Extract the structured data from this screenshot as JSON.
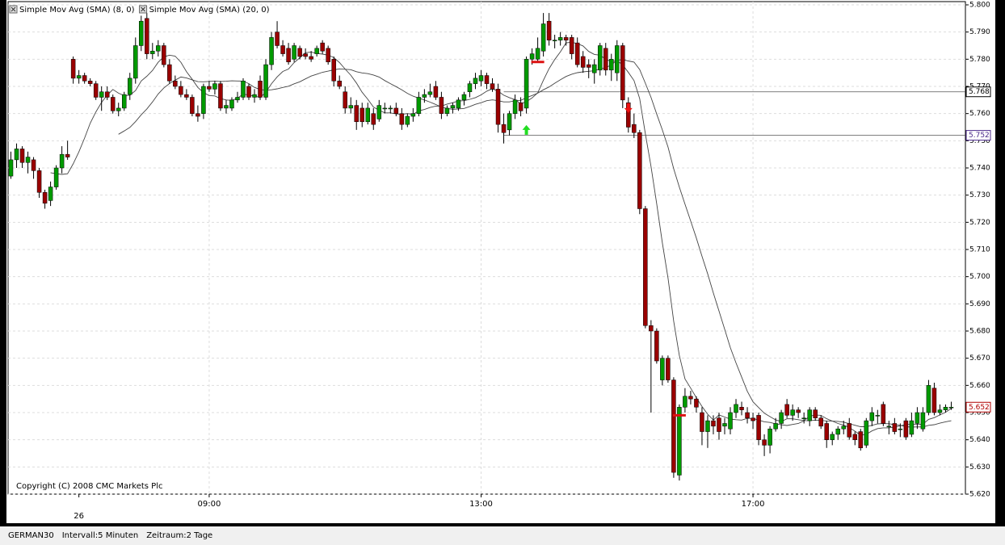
{
  "chart_data": {
    "type": "candlestick",
    "sma": [
      {
        "name": "Simple Mov Avg (SMA) (8, 0)",
        "period": 8,
        "color": "#444444"
      },
      {
        "name": "Simple Mov Avg (SMA) (20, 0)",
        "period": 20,
        "color": "#444444"
      }
    ],
    "copyright": "Copyright (C) 2008 CMC Markets Plc",
    "up_color": "#009a00",
    "down_color": "#9a0000",
    "xlim": [
      -0.5,
      168.5
    ],
    "xticks": [
      {
        "value": 12,
        "label": "26"
      },
      {
        "value": 35,
        "label": "09:00"
      },
      {
        "value": 83,
        "label": "13:00"
      },
      {
        "value": 131,
        "label": "17:00"
      }
    ],
    "ylim": [
      5620,
      5800
    ],
    "yticks": [
      {
        "value": 5620,
        "label": "5.620"
      },
      {
        "value": 5630,
        "label": "5.630"
      },
      {
        "value": 5640,
        "label": "5.640"
      },
      {
        "value": 5650,
        "label": "5.650"
      },
      {
        "value": 5660,
        "label": "5.660"
      },
      {
        "value": 5670,
        "label": "5.670"
      },
      {
        "value": 5680,
        "label": "5.680"
      },
      {
        "value": 5690,
        "label": "5.690"
      },
      {
        "value": 5700,
        "label": "5.700"
      },
      {
        "value": 5710,
        "label": "5.710"
      },
      {
        "value": 5720,
        "label": "5.720"
      },
      {
        "value": 5730,
        "label": "5.730"
      },
      {
        "value": 5740,
        "label": "5.740"
      },
      {
        "value": 5750,
        "label": "5.750"
      },
      {
        "value": 5760,
        "label": "5.760"
      },
      {
        "value": 5770,
        "label": "5.770"
      },
      {
        "value": 5780,
        "label": "5.780"
      },
      {
        "value": 5790,
        "label": "5.790"
      },
      {
        "value": 5800,
        "label": "5.800"
      }
    ],
    "grid": true,
    "levels": [
      {
        "value": 5768,
        "label": "5.768",
        "color": "#000000"
      },
      {
        "value": 5752,
        "label": "5.752",
        "color": "#4b2a8a"
      }
    ],
    "last": {
      "value": 5652,
      "label": "5.652",
      "color": "#b00000"
    },
    "signals": [
      {
        "kind": "buy",
        "x": 91,
        "price": 5754
      },
      {
        "kind": "exit",
        "x": 93,
        "price": 5779
      },
      {
        "kind": "sell",
        "x": 109,
        "price": 5762
      },
      {
        "kind": "exit",
        "x": 118,
        "price": 5649
      }
    ],
    "ohlc": [
      [
        5737,
        5746,
        5736,
        5743
      ],
      [
        5743,
        5749,
        5740,
        5747
      ],
      [
        5747,
        5748,
        5740,
        5742
      ],
      [
        5742,
        5746,
        5738,
        5744
      ],
      [
        5743,
        5744,
        5736,
        5739
      ],
      [
        5739,
        5740,
        5729,
        5731
      ],
      [
        5731,
        5732,
        5725,
        5727
      ],
      [
        5728,
        5735,
        5726,
        5733
      ],
      [
        5733,
        5741,
        5732,
        5740
      ],
      [
        5740,
        5748,
        5738,
        5745
      ],
      [
        5745,
        5750,
        5743,
        5744
      ],
      [
        5780,
        5781,
        5771,
        5773
      ],
      [
        5773,
        5776,
        5771,
        5774
      ],
      [
        5774,
        5775,
        5771,
        5772
      ],
      [
        5772,
        5773,
        5770,
        5771
      ],
      [
        5771,
        5772,
        5765,
        5766
      ],
      [
        5766,
        5770,
        5761,
        5768
      ],
      [
        5768,
        5770,
        5765,
        5766
      ],
      [
        5766,
        5767,
        5760,
        5761
      ],
      [
        5761,
        5764,
        5759,
        5762
      ],
      [
        5762,
        5768,
        5761,
        5767
      ],
      [
        5767,
        5775,
        5765,
        5773
      ],
      [
        5773,
        5788,
        5771,
        5785
      ],
      [
        5785,
        5796,
        5783,
        5794
      ],
      [
        5795,
        5797,
        5780,
        5782
      ],
      [
        5782,
        5786,
        5780,
        5783
      ],
      [
        5783,
        5787,
        5781,
        5785
      ],
      [
        5785,
        5786,
        5777,
        5778
      ],
      [
        5778,
        5780,
        5771,
        5772
      ],
      [
        5772,
        5774,
        5769,
        5770
      ],
      [
        5770,
        5772,
        5766,
        5767
      ],
      [
        5767,
        5769,
        5765,
        5766
      ],
      [
        5766,
        5767,
        5759,
        5760
      ],
      [
        5760,
        5763,
        5757,
        5759
      ],
      [
        5760,
        5771,
        5758,
        5770
      ],
      [
        5770,
        5772,
        5768,
        5769
      ],
      [
        5769,
        5772,
        5767,
        5771
      ],
      [
        5771,
        5772,
        5761,
        5762
      ],
      [
        5762,
        5765,
        5760,
        5763
      ],
      [
        5762,
        5766,
        5761,
        5765
      ],
      [
        5765,
        5768,
        5764,
        5766
      ],
      [
        5766,
        5773,
        5765,
        5772
      ],
      [
        5770,
        5771,
        5765,
        5766
      ],
      [
        5766,
        5769,
        5764,
        5767
      ],
      [
        5772,
        5774,
        5765,
        5766
      ],
      [
        5766,
        5780,
        5765,
        5778
      ],
      [
        5778,
        5790,
        5776,
        5788
      ],
      [
        5790,
        5794,
        5784,
        5785
      ],
      [
        5785,
        5787,
        5781,
        5782
      ],
      [
        5784,
        5786,
        5778,
        5779
      ],
      [
        5780,
        5786,
        5779,
        5785
      ],
      [
        5784,
        5785,
        5780,
        5781
      ],
      [
        5782,
        5784,
        5780,
        5781
      ],
      [
        5781,
        5783,
        5779,
        5780
      ],
      [
        5782,
        5785,
        5781,
        5784
      ],
      [
        5786,
        5787,
        5782,
        5783
      ],
      [
        5784,
        5785,
        5778,
        5779
      ],
      [
        5780,
        5781,
        5770,
        5772
      ],
      [
        5772,
        5774,
        5769,
        5770
      ],
      [
        5768,
        5770,
        5760,
        5762
      ],
      [
        5762,
        5766,
        5760,
        5763
      ],
      [
        5763,
        5765,
        5754,
        5757
      ],
      [
        5762,
        5764,
        5755,
        5757
      ],
      [
        5757,
        5764,
        5756,
        5762
      ],
      [
        5760,
        5762,
        5754,
        5756
      ],
      [
        5758,
        5765,
        5757,
        5763
      ],
      [
        5762,
        5764,
        5760,
        5762
      ],
      [
        5762,
        5763,
        5760,
        5762
      ],
      [
        5762,
        5764,
        5759,
        5760
      ],
      [
        5760,
        5762,
        5754,
        5756
      ],
      [
        5756,
        5760,
        5755,
        5759
      ],
      [
        5759,
        5762,
        5757,
        5760
      ],
      [
        5760,
        5768,
        5759,
        5766
      ],
      [
        5766,
        5769,
        5764,
        5767
      ],
      [
        5767,
        5771,
        5766,
        5768
      ],
      [
        5770,
        5772,
        5765,
        5766
      ],
      [
        5766,
        5768,
        5758,
        5760
      ],
      [
        5760,
        5763,
        5759,
        5762
      ],
      [
        5762,
        5764,
        5760,
        5763
      ],
      [
        5762,
        5766,
        5761,
        5765
      ],
      [
        5765,
        5768,
        5763,
        5767
      ],
      [
        5768,
        5772,
        5766,
        5771
      ],
      [
        5771,
        5775,
        5769,
        5773
      ],
      [
        5772,
        5776,
        5770,
        5774
      ],
      [
        5774,
        5775,
        5769,
        5771
      ],
      [
        5771,
        5773,
        5768,
        5769
      ],
      [
        5769,
        5771,
        5753,
        5756
      ],
      [
        5756,
        5760,
        5749,
        5753
      ],
      [
        5754,
        5761,
        5752,
        5760
      ],
      [
        5760,
        5767,
        5758,
        5765
      ],
      [
        5764,
        5766,
        5759,
        5761
      ],
      [
        5762,
        5781,
        5760,
        5780
      ],
      [
        5780,
        5784,
        5778,
        5782
      ],
      [
        5780,
        5788,
        5779,
        5784
      ],
      [
        5783,
        5797,
        5781,
        5793
      ],
      [
        5794,
        5797,
        5785,
        5787
      ],
      [
        5787,
        5789,
        5784,
        5787
      ],
      [
        5787,
        5790,
        5785,
        5788
      ],
      [
        5788,
        5789,
        5785,
        5787
      ],
      [
        5788,
        5789,
        5780,
        5782
      ],
      [
        5786,
        5788,
        5777,
        5778
      ],
      [
        5781,
        5783,
        5775,
        5777
      ],
      [
        5778,
        5780,
        5773,
        5777
      ],
      [
        5775,
        5780,
        5771,
        5778
      ],
      [
        5776,
        5786,
        5774,
        5785
      ],
      [
        5784,
        5786,
        5774,
        5776
      ],
      [
        5776,
        5782,
        5772,
        5780
      ],
      [
        5775,
        5787,
        5772,
        5785
      ],
      [
        5785,
        5786,
        5762,
        5765
      ],
      [
        5764,
        5766,
        5753,
        5755
      ],
      [
        5756,
        5760,
        5751,
        5753
      ],
      [
        5753,
        5754,
        5723,
        5725
      ],
      [
        5725,
        5726,
        5681,
        5682
      ],
      [
        5682,
        5684,
        5650,
        5680
      ],
      [
        5680,
        5681,
        5668,
        5669
      ],
      [
        5662,
        5671,
        5660,
        5670
      ],
      [
        5670,
        5671,
        5661,
        5662
      ],
      [
        5662,
        5663,
        5626,
        5628
      ],
      [
        5627,
        5653,
        5625,
        5652
      ],
      [
        5652,
        5659,
        5650,
        5656
      ],
      [
        5656,
        5658,
        5653,
        5655
      ],
      [
        5655,
        5656,
        5650,
        5652
      ],
      [
        5650,
        5652,
        5638,
        5643
      ],
      [
        5643,
        5649,
        5637,
        5647
      ],
      [
        5647,
        5649,
        5642,
        5645
      ],
      [
        5648,
        5650,
        5640,
        5643
      ],
      [
        5645,
        5648,
        5642,
        5646
      ],
      [
        5644,
        5652,
        5642,
        5650
      ],
      [
        5650,
        5655,
        5648,
        5653
      ],
      [
        5652,
        5654,
        5649,
        5651
      ],
      [
        5650,
        5652,
        5646,
        5648
      ],
      [
        5648,
        5650,
        5644,
        5647
      ],
      [
        5649,
        5650,
        5638,
        5640
      ],
      [
        5640,
        5642,
        5634,
        5638
      ],
      [
        5638,
        5645,
        5635,
        5644
      ],
      [
        5644,
        5648,
        5643,
        5646
      ],
      [
        5646,
        5651,
        5644,
        5650
      ],
      [
        5653,
        5655,
        5648,
        5649
      ],
      [
        5649,
        5653,
        5647,
        5651
      ],
      [
        5651,
        5652,
        5648,
        5650
      ],
      [
        5648,
        5650,
        5646,
        5648
      ],
      [
        5647,
        5652,
        5645,
        5651
      ],
      [
        5651,
        5652,
        5647,
        5648
      ],
      [
        5648,
        5649,
        5644,
        5645
      ],
      [
        5646,
        5647,
        5637,
        5640
      ],
      [
        5640,
        5643,
        5638,
        5642
      ],
      [
        5642,
        5645,
        5640,
        5644
      ],
      [
        5644,
        5647,
        5642,
        5645
      ],
      [
        5646,
        5648,
        5640,
        5641
      ],
      [
        5642,
        5643,
        5638,
        5640
      ],
      [
        5643,
        5644,
        5636,
        5637
      ],
      [
        5638,
        5648,
        5637,
        5647
      ],
      [
        5647,
        5652,
        5645,
        5650
      ],
      [
        5649,
        5651,
        5646,
        5649
      ],
      [
        5653,
        5654,
        5645,
        5646
      ],
      [
        5645,
        5647,
        5642,
        5645
      ],
      [
        5646,
        5648,
        5642,
        5643
      ],
      [
        5644,
        5646,
        5641,
        5644
      ],
      [
        5647,
        5648,
        5640,
        5641
      ],
      [
        5642,
        5650,
        5641,
        5647
      ],
      [
        5646,
        5652,
        5644,
        5650
      ],
      [
        5644,
        5652,
        5643,
        5650
      ],
      [
        5650,
        5662,
        5649,
        5660
      ],
      [
        5659,
        5661,
        5649,
        5650
      ],
      [
        5650,
        5653,
        5649,
        5651
      ],
      [
        5651,
        5653,
        5650,
        5652
      ],
      [
        5652,
        5654,
        5651,
        5652
      ]
    ]
  },
  "footer": {
    "symbol": "GERMAN30",
    "interval": "Intervall:5 Minuten",
    "range": "Zeitraum:2 Tage"
  }
}
